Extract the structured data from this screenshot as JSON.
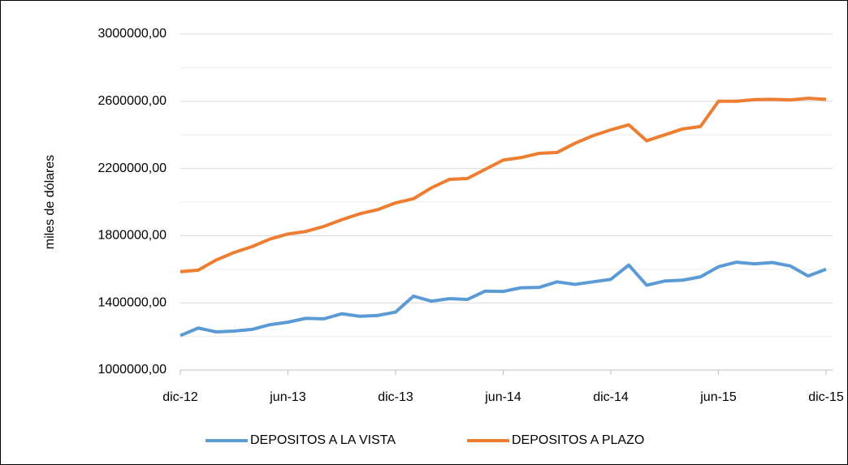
{
  "chart_data": {
    "type": "line",
    "y_label": "miles de dólares",
    "categories": [
      "dic-12",
      null,
      null,
      null,
      null,
      null,
      "jun-13",
      null,
      null,
      null,
      null,
      null,
      "dic-13",
      null,
      null,
      null,
      null,
      null,
      "jun-14",
      null,
      null,
      null,
      null,
      null,
      "dic-14",
      null,
      null,
      null,
      null,
      null,
      "jun-15",
      null,
      null,
      null,
      null,
      null,
      "dic-15"
    ],
    "series": [
      {
        "name": "DEPOSITOS A LA VISTA",
        "color": "#5b9bd5",
        "values": [
          1205000,
          1250000,
          1227000,
          1232000,
          1242000,
          1270000,
          1285000,
          1308000,
          1305000,
          1335000,
          1320000,
          1325000,
          1345000,
          1440000,
          1410000,
          1425000,
          1420000,
          1470000,
          1468000,
          1490000,
          1492000,
          1525000,
          1510000,
          1525000,
          1540000,
          1625000,
          1505000,
          1530000,
          1535000,
          1555000,
          1615000,
          1642000,
          1632000,
          1640000,
          1620000,
          1560000,
          1600000
        ]
      },
      {
        "name": "DEPOSITOS A PLAZO",
        "color": "#ed7d31",
        "values": [
          1585000,
          1595000,
          1655000,
          1700000,
          1735000,
          1780000,
          1810000,
          1825000,
          1855000,
          1895000,
          1930000,
          1955000,
          1995000,
          2020000,
          2085000,
          2135000,
          2140000,
          2195000,
          2250000,
          2265000,
          2290000,
          2295000,
          2350000,
          2395000,
          2430000,
          2460000,
          2365000,
          2400000,
          2435000,
          2450000,
          2600000,
          2600000,
          2610000,
          2612000,
          2608000,
          2618000,
          2612000
        ]
      }
    ],
    "ylim": [
      1000000,
      3000000
    ],
    "yticks": [
      {
        "value": 1000000,
        "label": "1000000,00"
      },
      {
        "value": 1400000,
        "label": "1400000,00"
      },
      {
        "value": 1800000,
        "label": "1800000,00"
      },
      {
        "value": 2200000,
        "label": "2200000,00"
      },
      {
        "value": 2600000,
        "label": "2600000,00"
      },
      {
        "value": 3000000,
        "label": "3000000,00"
      }
    ],
    "minor_yticks": [
      1200000,
      1600000,
      2000000,
      2400000,
      2800000
    ],
    "grid": true,
    "legend": "bottom"
  }
}
